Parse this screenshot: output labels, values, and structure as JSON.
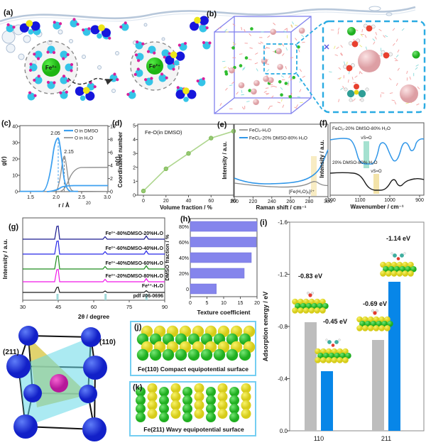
{
  "figure_type": "multi-panel scientific paper figure",
  "panels": {
    "a": {
      "label": "(a)",
      "ion_label": "Fe²⁺"
    },
    "b": {
      "label": "(b)"
    },
    "c": {
      "label": "(c)",
      "ylabel_left": "g(r)",
      "ylabel_right": "n(r)",
      "xlabel": "r / Å",
      "yticks_left": [
        "40",
        "30",
        "20",
        "10",
        "0"
      ],
      "yticks_right": [
        "10",
        "8",
        "6",
        "4",
        "2",
        "0"
      ],
      "xticks": [
        "1.5",
        "2.0",
        "2.5",
        "3.0"
      ],
      "legend": [
        "O in DMSO",
        "O in H₂O"
      ],
      "peak_labels": [
        "2.05",
        "2.15"
      ],
      "stray_note": "20"
    },
    "d": {
      "label": "(d)",
      "title": "Fe-O(in DMSO)",
      "ylabel": "Coordinated number",
      "xlabel": "Volume fraction / %",
      "yticks": [
        "5",
        "4",
        "3",
        "2",
        "1",
        "0"
      ],
      "xticks": [
        "0",
        "20",
        "40",
        "60",
        "80"
      ]
    },
    "e": {
      "label": "(e)",
      "ylabel": "Intensity / a.u.",
      "xlabel": "Raman shift / cm⁻¹",
      "xticks": [
        "200",
        "220",
        "240",
        "260",
        "280",
        "300"
      ],
      "legend": [
        "FeCl₂-H₂O",
        "FeCl₂-20% DMSO-80% H₂O"
      ],
      "annotation": "[Fe(H₂O)₆]²⁺"
    },
    "f": {
      "label": "(f)",
      "ylabel": "Intensity / a.u.",
      "xlabel": "Wavenumber / cm⁻¹",
      "xticks": [
        "1200",
        "1100",
        "1000",
        "900"
      ],
      "curve_labels": [
        "FeCl₂-20% DMSO-80% H₂O",
        "20% DMSO-80% H₂O"
      ],
      "band_labels": [
        "νS=O",
        "νS=O"
      ]
    },
    "g": {
      "label": "(g)",
      "ylabel": "Intensity / a.u.",
      "xlabel": "2θ / degree",
      "xticks": [
        "30",
        "45",
        "60",
        "75",
        "90"
      ],
      "series_labels": [
        "Fe²⁺-80%DMSO-20%H₂O",
        "Fe²⁺-60%DMSO-40%H₂O",
        "Fe²⁺-40%DMSO-60%H₂O",
        "Fe²⁺-20%DMSO-80%H₂O",
        "Fe²⁺-H₂O",
        "pdf #06-0696"
      ]
    },
    "h": {
      "label": "(h)",
      "ylabel": "DMSO fraction / %",
      "xlabel": "Texture coefficient",
      "categories": [
        "80%",
        "60%",
        "40%",
        "20%",
        "0"
      ],
      "xticks": [
        "0",
        "5",
        "10",
        "15",
        "20"
      ]
    },
    "i": {
      "label": "(i)",
      "ylabel": "Adsorption energy / eV",
      "yticks": [
        "-1.6",
        "-1.2",
        "-0.8",
        "-0.4",
        "0.0"
      ],
      "group_labels": [
        "110",
        "211"
      ],
      "bar_value_labels": [
        "-0.83 eV",
        "-0.45 eV",
        "-0.69 eV",
        "-1.14 eV"
      ]
    },
    "crystal": {
      "plane_labels": [
        "(211)",
        "(110)"
      ]
    },
    "j": {
      "label": "(j)",
      "caption": "Fe(110) Compact equipotential surface"
    },
    "k": {
      "label": "(k)",
      "caption": "Fe(211) Wavy equipotential surface"
    }
  },
  "colors": {
    "c_blue": "#3da0f0",
    "c_gray": "#8a8a8a",
    "d_green": "#95c873",
    "g_navy": "#1a1a90",
    "g_blue": "#2828e8",
    "g_green": "#1f8c1f",
    "g_magenta": "#f018e8",
    "g_black": "#1c1c1c",
    "g_ref_cyan": "#a0d8d8",
    "h_bar": "#8585ec",
    "i_gray": "#bdbdbd",
    "i_blue": "#0786e8",
    "box_cyan": "#74cef2",
    "sim_purple": "#8181ee",
    "plane_211_yellow": "#d9c84a",
    "plane_110_cyan": "#66d9e8"
  },
  "chart_data": [
    {
      "type": "line",
      "panel": "c",
      "xlabel": "r / Å",
      "ylabel_left": "g(r)",
      "ylabel_right": "n(r)",
      "xlim": [
        1.25,
        3.0
      ],
      "ylim_left": [
        0,
        40
      ],
      "ylim_right": [
        0,
        10
      ],
      "series": [
        {
          "name": "O in DMSO g(r)",
          "color": "#3da0f0",
          "peak_x": 2.05,
          "peak_y": 33
        },
        {
          "name": "O in H₂O g(r)",
          "color": "#8a8a8a",
          "peak_x": 2.15,
          "peak_y": 22
        },
        {
          "name": "O in DMSO n(r)",
          "axis": "right",
          "plateau": 1.3
        },
        {
          "name": "O in H₂O n(r)",
          "axis": "right",
          "plateau": 4.0
        }
      ],
      "annotations": [
        "2.05",
        "2.15"
      ],
      "legend_position": "top-right"
    },
    {
      "type": "line",
      "panel": "d",
      "title": "Fe-O(in DMSO)",
      "xlabel": "Volume fraction / %",
      "ylabel": "Coordinated number",
      "x": [
        0,
        20,
        40,
        60,
        80
      ],
      "y": [
        0.3,
        1.9,
        3.0,
        4.1,
        4.6
      ],
      "color": "#95c873",
      "ylim": [
        0,
        5
      ]
    },
    {
      "type": "line",
      "panel": "e",
      "xlabel": "Raman shift / cm⁻¹",
      "ylabel": "Intensity / a.u.",
      "xlim": [
        200,
        300
      ],
      "series": [
        {
          "name": "FeCl₂-H₂O",
          "color": "#8a8a8a",
          "feature": "broad band near 285"
        },
        {
          "name": "FeCl₂-20% DMSO-80% H₂O",
          "color": "#2f96e8",
          "feature": "intensity rising toward 300"
        }
      ],
      "annotation": "[Fe(H₂O)₆]²⁺",
      "highlight_x": 285
    },
    {
      "type": "line",
      "panel": "f",
      "xlabel": "Wavenumber / cm⁻¹",
      "ylabel": "Intensity / a.u.",
      "xlim": [
        1200,
        850
      ],
      "series": [
        {
          "name": "FeCl₂-20% DMSO-80% H₂O",
          "color": "#2f96e8",
          "band": "νS=O near 1040"
        },
        {
          "name": "20% DMSO-80% H₂O",
          "color": "#1c1c1c",
          "band": "νS=O near 1020"
        }
      ]
    },
    {
      "type": "line",
      "panel": "g",
      "xlabel": "2θ / degree",
      "ylabel": "Intensity / a.u.",
      "xlim": [
        30,
        90
      ],
      "peak_positions": [
        44.7,
        65.0,
        82.3
      ],
      "series": [
        "Fe²⁺-80%DMSO-20%H₂O",
        "Fe²⁺-60%DMSO-40%H₂O",
        "Fe²⁺-40%DMSO-60%H₂O",
        "Fe²⁺-20%DMSO-80%H₂O",
        "Fe²⁺-H₂O"
      ],
      "reference": "pdf #06-0696"
    },
    {
      "type": "bar",
      "panel": "h",
      "orientation": "horizontal",
      "xlabel": "Texture coefficient",
      "ylabel": "DMSO fraction / %",
      "categories": [
        "0",
        "20%",
        "40%",
        "60%",
        "80%"
      ],
      "values": [
        7.8,
        16.2,
        18.3,
        19.8,
        22.0
      ],
      "xlim": [
        0,
        20
      ],
      "color": "#8585ec"
    },
    {
      "type": "bar",
      "panel": "i",
      "ylabel": "Adsorption energy / eV",
      "categories": [
        "110",
        "211"
      ],
      "ylim": [
        0,
        -1.6
      ],
      "series": [
        {
          "name": "gray-bar-series",
          "color": "#bdbdbd",
          "values": [
            -0.83,
            -0.69
          ]
        },
        {
          "name": "blue-bar-series",
          "color": "#0786e8",
          "values": [
            -0.45,
            -1.14
          ]
        }
      ],
      "bar_labels": [
        "-0.83 eV",
        "-0.45 eV",
        "-0.69 eV",
        "-1.14 eV"
      ]
    }
  ]
}
